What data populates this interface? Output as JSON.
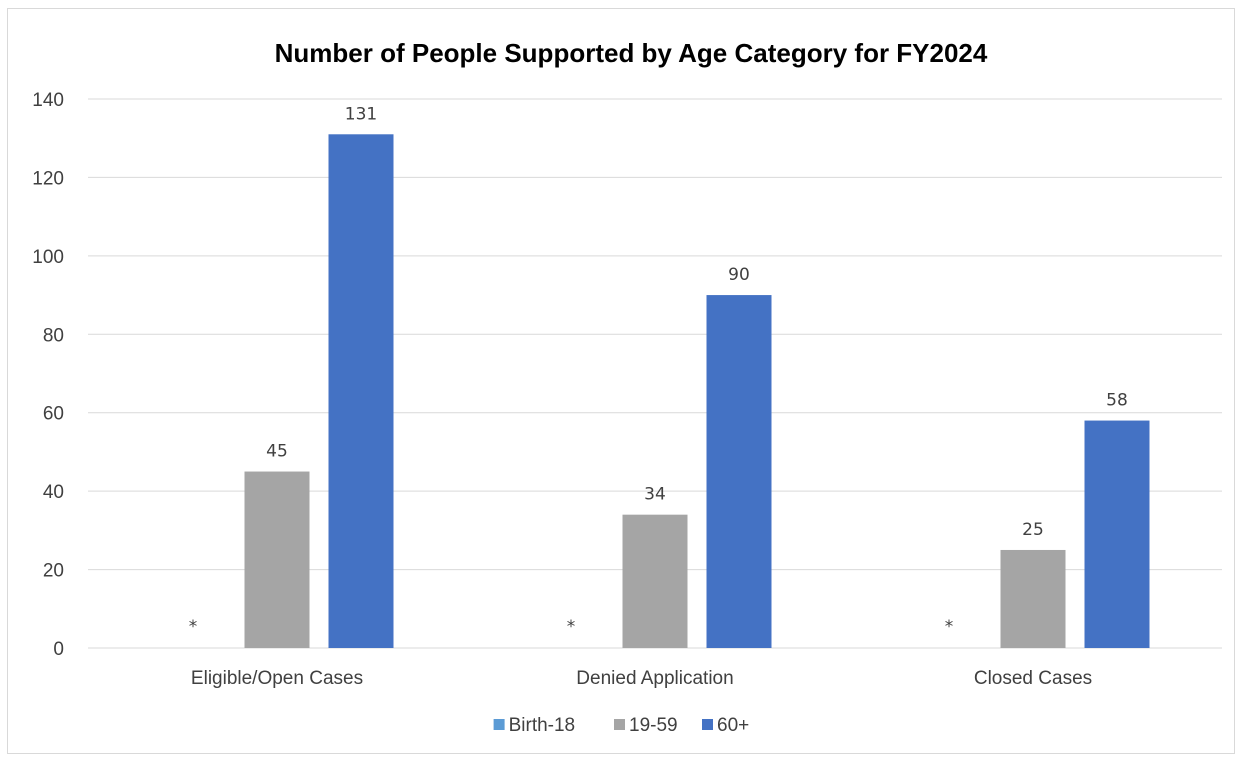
{
  "chart_data": {
    "type": "bar",
    "title": "Number of People Supported by Age Category for FY2024",
    "xlabel": "",
    "ylabel": "",
    "categories": [
      "Eligible/Open Cases",
      "Denied Application",
      "Closed Cases"
    ],
    "series": [
      {
        "name": "Birth-18",
        "values": [
          null,
          null,
          null
        ],
        "labels": [
          "*",
          "*",
          "*"
        ],
        "color": "#5b9bd5"
      },
      {
        "name": "19-59",
        "values": [
          45,
          34,
          25
        ],
        "labels": [
          "45",
          "34",
          "25"
        ],
        "color": "#a5a5a5"
      },
      {
        "name": "60+",
        "values": [
          131,
          90,
          58
        ],
        "labels": [
          "131",
          "90",
          "58"
        ],
        "color": "#4472c4"
      }
    ],
    "ylim": [
      0,
      140
    ],
    "yticks": [
      0,
      20,
      40,
      60,
      80,
      100,
      120,
      140
    ],
    "grid": true,
    "legend": "bottom"
  }
}
